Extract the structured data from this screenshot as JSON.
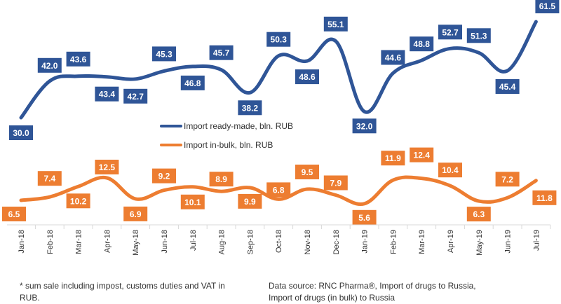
{
  "chart_data": {
    "type": "line",
    "categories": [
      "Jan-18",
      "Feb-18",
      "Mar-18",
      "Apr-18",
      "May-18",
      "Jun-18",
      "Jul-18",
      "Aug-18",
      "Sep-18",
      "Oct-18",
      "Nov-18",
      "Dec-18",
      "Jan-19",
      "Feb-19",
      "Mar-19",
      "Apr-19",
      "May-19",
      "Jun-19",
      "Jul-19"
    ],
    "series": [
      {
        "name": "Import ready-made, bln. RUB",
        "color": "#2F5597",
        "values": [
          30.0,
          42.0,
          43.6,
          43.4,
          42.7,
          45.3,
          46.8,
          45.7,
          38.2,
          50.3,
          48.6,
          55.1,
          32.0,
          44.6,
          48.8,
          52.7,
          51.3,
          45.4,
          61.5
        ],
        "labels": [
          "30.0",
          "42.0",
          "43.6",
          "43.4",
          "42.7",
          "45.3",
          "46.8",
          "45.7",
          "38.2",
          "50.3",
          "48.6",
          "55.1",
          "32.0",
          "44.6",
          "48.8",
          "52.7",
          "51.3",
          "45.4",
          "61.5"
        ]
      },
      {
        "name": "Import in-bulk, bln. RUB",
        "color": "#ED7D31",
        "values": [
          6.5,
          7.4,
          10.2,
          12.5,
          6.9,
          9.2,
          10.1,
          8.9,
          9.9,
          6.8,
          9.5,
          7.9,
          5.6,
          11.9,
          12.4,
          10.4,
          6.3,
          7.2,
          11.8
        ],
        "labels": [
          "6.5",
          "7.4",
          "10.2",
          "12.5",
          "6.9",
          "9.2",
          "10.1",
          "8.9",
          "9.9",
          "6.8",
          "9.5",
          "7.9",
          "5.6",
          "11.9",
          "12.4",
          "10.4",
          "6.3",
          "7.2",
          "11.8"
        ]
      }
    ],
    "legend_position": "center"
  },
  "footnote": "* sum sale including impost, customs duties and VAT in RUB.",
  "source": "Data source: RNC Pharma®, Import of drugs to Russia, Import of drugs (in bulk) to Russia"
}
